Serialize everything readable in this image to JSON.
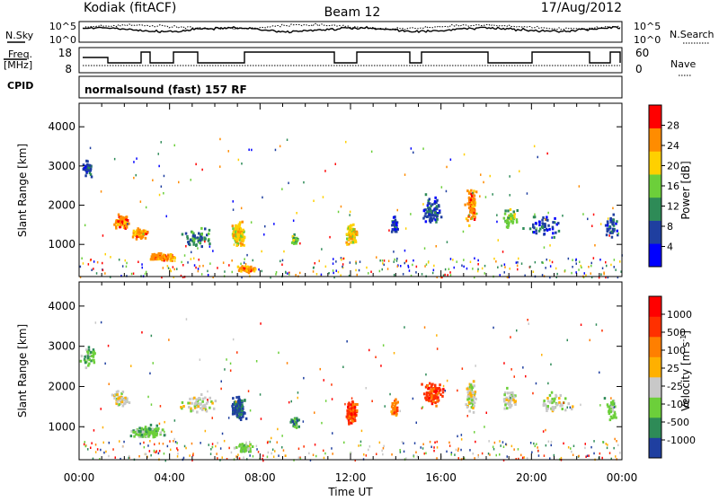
{
  "header": {
    "station": "Kodiak (fitACF)",
    "beam": "Beam 12",
    "date": "17/Aug/2012"
  },
  "top_panels": {
    "nsky_label": "N.Sky",
    "nsky_ticks": [
      "10^5",
      "10^0"
    ],
    "nsearch_label": "N.Search",
    "nsearch_ticks": [
      "10^5",
      "10^0"
    ],
    "freq_label": "Freq.",
    "freq_unit": "[MHz]",
    "freq_ticks": [
      "18",
      "8"
    ],
    "nave_label": "Nave",
    "nave_ticks": [
      "60",
      "0"
    ],
    "cpid_label": "CPID",
    "cpid_text": "normalsound (fast) 157 RF"
  },
  "chart_data": [
    {
      "type": "heatmap",
      "name": "power-panel",
      "ylabel": "Slant Range [km]",
      "xlabel": "",
      "yticks": [
        "4000",
        "3000",
        "2000",
        "1000"
      ],
      "ylim": [
        180,
        4600
      ],
      "xlim": [
        0,
        24
      ],
      "colorbar_label": "Power [dB]",
      "colorbar_ticks": [
        "28",
        "24",
        "20",
        "16",
        "12",
        "8",
        "4"
      ],
      "colors": [
        "#0000ff",
        "#1f3fa0",
        "#2e8b57",
        "#6ccf3a",
        "#ffd000",
        "#ff8c00",
        "#ff0000"
      ],
      "blobs": [
        {
          "t": 0.3,
          "r": 3000,
          "dt": 0.3,
          "dr": 300,
          "c": 1,
          "n": 40
        },
        {
          "t": 1.8,
          "r": 1600,
          "dt": 0.5,
          "dr": 250,
          "c": 5,
          "n": 70
        },
        {
          "t": 2.6,
          "r": 1300,
          "dt": 0.5,
          "dr": 200,
          "c": 5,
          "n": 60
        },
        {
          "t": 3.6,
          "r": 700,
          "dt": 0.8,
          "dr": 120,
          "c": 5,
          "n": 90
        },
        {
          "t": 5.2,
          "r": 1200,
          "dt": 0.8,
          "dr": 300,
          "c": 2,
          "n": 60
        },
        {
          "t": 7.0,
          "r": 1300,
          "dt": 0.4,
          "dr": 350,
          "c": 4,
          "n": 130
        },
        {
          "t": 7.4,
          "r": 400,
          "dt": 0.5,
          "dr": 100,
          "c": 5,
          "n": 50
        },
        {
          "t": 9.5,
          "r": 1150,
          "dt": 0.2,
          "dr": 200,
          "c": 3,
          "n": 30
        },
        {
          "t": 12.0,
          "r": 1300,
          "dt": 0.3,
          "dr": 350,
          "c": 4,
          "n": 110
        },
        {
          "t": 13.9,
          "r": 1500,
          "dt": 0.2,
          "dr": 300,
          "c": 1,
          "n": 30
        },
        {
          "t": 15.6,
          "r": 1900,
          "dt": 0.6,
          "dr": 450,
          "c": 1,
          "n": 80
        },
        {
          "t": 17.3,
          "r": 2000,
          "dt": 0.3,
          "dr": 600,
          "c": 5,
          "n": 90
        },
        {
          "t": 19.0,
          "r": 1700,
          "dt": 0.4,
          "dr": 300,
          "c": 3,
          "n": 50
        },
        {
          "t": 20.5,
          "r": 1500,
          "dt": 1.0,
          "dr": 400,
          "c": 1,
          "n": 50
        },
        {
          "t": 23.5,
          "r": 1500,
          "dt": 0.4,
          "dr": 400,
          "c": 1,
          "n": 40
        }
      ]
    },
    {
      "type": "heatmap",
      "name": "velocity-panel",
      "ylabel": "Slant Range [km]",
      "xlabel": "Time UT",
      "yticks": [
        "4000",
        "3000",
        "2000",
        "1000"
      ],
      "xticks": [
        "00:00",
        "04:00",
        "08:00",
        "12:00",
        "16:00",
        "20:00",
        "00:00"
      ],
      "ylim": [
        180,
        4600
      ],
      "xlim": [
        0,
        24
      ],
      "colorbar_label": "Velocity [m s",
      "colorbar_label_sup": "-1",
      "colorbar_label_end": "]",
      "colorbar_ticks": [
        "1000",
        "500",
        "100",
        "25",
        "-25",
        "-100",
        "-500",
        "-1000"
      ],
      "colors": [
        "#1f3fa0",
        "#2e8b57",
        "#6ccf3a",
        "#c8c8c8",
        "#ffb000",
        "#ff7f00",
        "#ff3000",
        "#ff0000"
      ],
      "blobs": [
        {
          "t": 0.4,
          "r": 2800,
          "dt": 0.4,
          "dr": 400,
          "c": 2,
          "n": 40
        },
        {
          "t": 1.8,
          "r": 1700,
          "dt": 0.5,
          "dr": 250,
          "c": 3,
          "n": 50
        },
        {
          "t": 3.0,
          "r": 900,
          "dt": 1.0,
          "dr": 200,
          "c": 2,
          "n": 110
        },
        {
          "t": 5.2,
          "r": 1600,
          "dt": 1.0,
          "dr": 300,
          "c": 3,
          "n": 60
        },
        {
          "t": 7.0,
          "r": 1500,
          "dt": 0.4,
          "dr": 350,
          "c": 0,
          "n": 120
        },
        {
          "t": 7.3,
          "r": 500,
          "dt": 0.5,
          "dr": 150,
          "c": 2,
          "n": 50
        },
        {
          "t": 9.5,
          "r": 1150,
          "dt": 0.2,
          "dr": 200,
          "c": 1,
          "n": 25
        },
        {
          "t": 12.0,
          "r": 1400,
          "dt": 0.3,
          "dr": 350,
          "c": 6,
          "n": 110
        },
        {
          "t": 13.9,
          "r": 1500,
          "dt": 0.2,
          "dr": 300,
          "c": 5,
          "n": 30
        },
        {
          "t": 15.6,
          "r": 1900,
          "dt": 0.6,
          "dr": 450,
          "c": 6,
          "n": 90
        },
        {
          "t": 17.3,
          "r": 1800,
          "dt": 0.3,
          "dr": 600,
          "c": 3,
          "n": 80
        },
        {
          "t": 19.0,
          "r": 1700,
          "dt": 0.4,
          "dr": 300,
          "c": 3,
          "n": 50
        },
        {
          "t": 21.0,
          "r": 1600,
          "dt": 1.0,
          "dr": 400,
          "c": 3,
          "n": 50
        },
        {
          "t": 23.5,
          "r": 1500,
          "dt": 0.4,
          "dr": 400,
          "c": 2,
          "n": 40
        }
      ]
    }
  ]
}
